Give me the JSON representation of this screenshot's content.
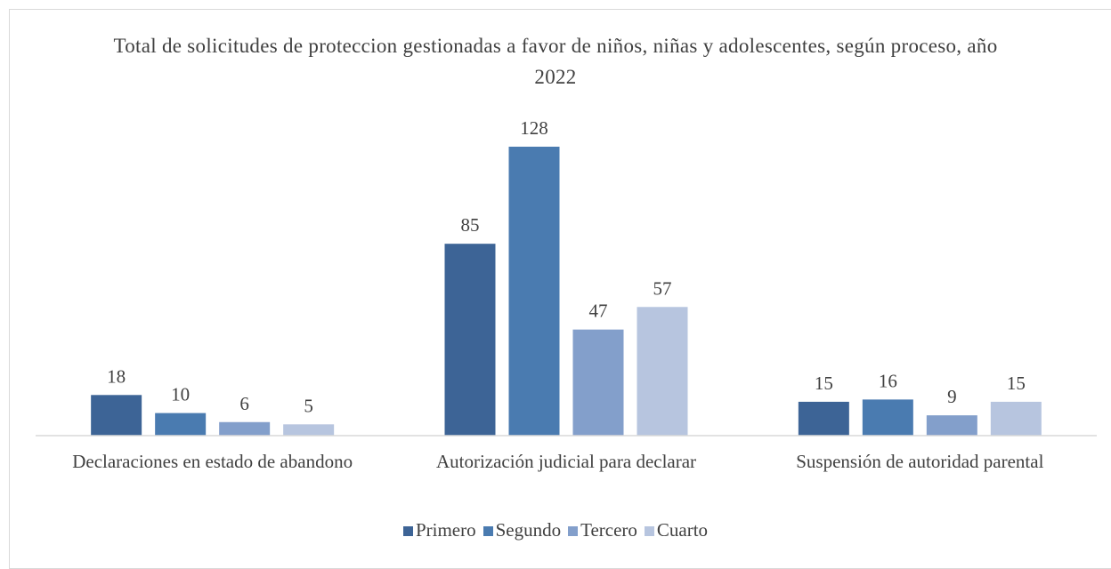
{
  "chart_data": {
    "type": "bar",
    "title": "Total de solicitudes de proteccion gestionadas a  favor de niños, niñas y adolescentes, según  proceso, año 2022",
    "categories": [
      "Declaraciones en estado de abandono",
      "Autorización judicial para declarar",
      "Suspensión de autoridad parental"
    ],
    "series": [
      {
        "name": "Primero",
        "color": "#3d6496",
        "values": [
          18,
          85,
          15
        ]
      },
      {
        "name": "Segundo",
        "color": "#4a7bb0",
        "values": [
          10,
          128,
          16
        ]
      },
      {
        "name": "Tercero",
        "color": "#839fcb",
        "values": [
          6,
          47,
          9
        ]
      },
      {
        "name": "Cuarto",
        "color": "#b7c5df",
        "values": [
          5,
          57,
          15
        ]
      }
    ],
    "legend": "bottom"
  }
}
